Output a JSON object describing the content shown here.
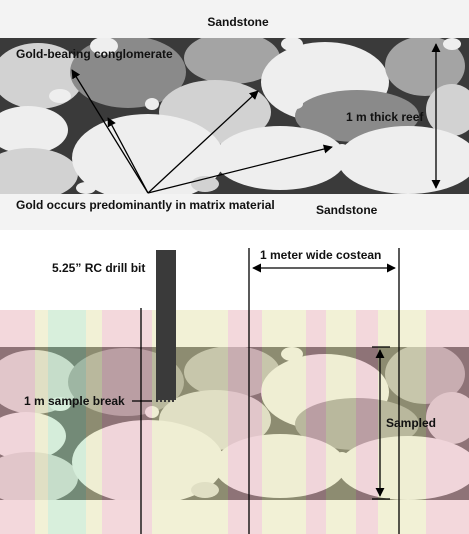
{
  "top_panel": {
    "label_top_sandstone": "Sandstone",
    "label_conglomerate": "Gold-bearing conglomerate",
    "label_thickness": "1 m thick reef",
    "label_gold": "Gold occurs predominantly in matrix material",
    "label_bottom_sandstone": "Sandstone"
  },
  "bottom_panel": {
    "label_drill_bit": "5.25” RC drill bit",
    "label_costean": "1 meter wide costean",
    "label_sample_break": "1 m sample break",
    "label_sampled": "Sampled"
  },
  "colors": {
    "sandstone": "#f3f3f3",
    "matrix": "#3a3a3a",
    "pebble_light": "#eeeeee",
    "pebble_mid": "#d2d2d2",
    "pebble_dark": "#a4a4a4",
    "pebble_darkest": "#8a8a8a",
    "stripe_pink": "#f4b8c2",
    "stripe_yellow": "#f2f0b4",
    "stripe_green": "#b8ecc2",
    "drill_bit": "#3a3a3a"
  }
}
